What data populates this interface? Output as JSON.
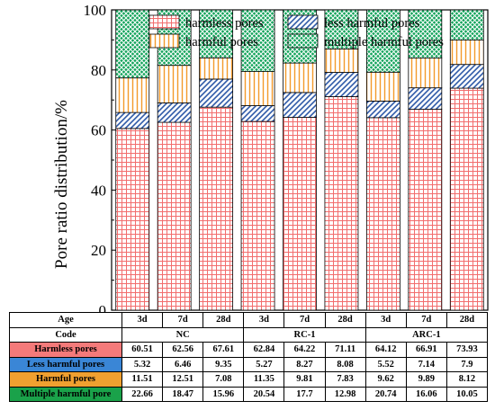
{
  "colors": {
    "harmless": "#f26d6d",
    "less": "#2f5aa8",
    "harmful": "#f39a2b",
    "multiple": "#12a35a",
    "table_harmless_bg": "#f47a7a",
    "table_less_bg": "#3a86d6",
    "table_harmful_bg": "#f0a030",
    "table_multiple_bg": "#1aa24a"
  },
  "chart_data": {
    "type": "bar",
    "stacked": true,
    "ylabel": "Pore ratio distribution/%",
    "ylim": [
      0,
      100
    ],
    "yticks": [
      0,
      20,
      40,
      60,
      80,
      100
    ],
    "legend_position": "top",
    "categories": [
      "3d",
      "7d",
      "28d",
      "3d",
      "7d",
      "28d",
      "3d",
      "7d",
      "28d"
    ],
    "series": [
      {
        "name": "harmless pores",
        "key": "harmless",
        "values": [
          60.51,
          62.56,
          67.61,
          62.84,
          64.22,
          71.11,
          64.12,
          66.91,
          73.93
        ]
      },
      {
        "name": "less harmful pores",
        "key": "less",
        "values": [
          5.32,
          6.46,
          9.35,
          5.27,
          8.27,
          8.08,
          5.52,
          7.14,
          7.9
        ]
      },
      {
        "name": "harmful pores",
        "key": "harmful",
        "values": [
          11.51,
          12.51,
          7.08,
          11.35,
          9.81,
          7.83,
          9.62,
          9.89,
          8.12
        ]
      },
      {
        "name": "multiple harmful pores",
        "key": "multiple",
        "values": [
          22.66,
          18.47,
          15.96,
          20.54,
          17.7,
          12.98,
          20.74,
          16.06,
          10.05
        ]
      }
    ]
  },
  "table": {
    "age_label": "Age",
    "code_label": "Code",
    "ages": [
      "3d",
      "7d",
      "28d",
      "3d",
      "7d",
      "28d",
      "3d",
      "7d",
      "28d"
    ],
    "codes": [
      "NC",
      "RC-1",
      "ARC-1"
    ],
    "rows": [
      {
        "label": "Harmless pores",
        "key": "harmless",
        "values": [
          "60.51",
          "62.56",
          "67.61",
          "62.84",
          "64.22",
          "71.11",
          "64.12",
          "66.91",
          "73.93"
        ]
      },
      {
        "label": "Less harmful pores",
        "key": "less",
        "values": [
          "5.32",
          "6.46",
          "9.35",
          "5.27",
          "8.27",
          "8.08",
          "5.52",
          "7.14",
          "7.9"
        ]
      },
      {
        "label": "Harmful pores",
        "key": "harmful",
        "values": [
          "11.51",
          "12.51",
          "7.08",
          "11.35",
          "9.81",
          "7.83",
          "9.62",
          "9.89",
          "8.12"
        ]
      },
      {
        "label": "Multiple harmful pore",
        "key": "multiple",
        "values": [
          "22.66",
          "18.47",
          "15.96",
          "20.54",
          "17.7",
          "12.98",
          "20.74",
          "16.06",
          "10.05"
        ]
      }
    ]
  }
}
